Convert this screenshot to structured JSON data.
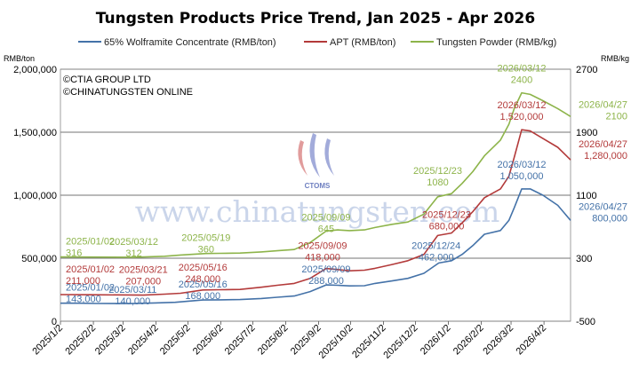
{
  "chart_data": {
    "type": "line",
    "title": "Tungsten Products Price Trend, Jan 2025 - Apr 2026",
    "y_left_unit": "RMB/ton",
    "y_right_unit": "RMB/kg",
    "y_left_range": [
      0,
      2000000
    ],
    "y_left_ticks": [
      "0",
      "500,000",
      "1,000,000",
      "1,500,000",
      "2,000,000"
    ],
    "y_right_range": [
      -500,
      2700
    ],
    "y_right_ticks": [
      "-500",
      "300",
      "1100",
      "1900",
      "2700"
    ],
    "x_range": [
      "2025-01-02",
      "2026-04-27"
    ],
    "x_ticks": [
      {
        "date": "2025-01-02",
        "label": "2025/1/2"
      },
      {
        "date": "2025-02-02",
        "label": "2025/2/2"
      },
      {
        "date": "2025-03-02",
        "label": "2025/3/2"
      },
      {
        "date": "2025-04-02",
        "label": "2025/4/2"
      },
      {
        "date": "2025-05-02",
        "label": "2025/5/2"
      },
      {
        "date": "2025-06-02",
        "label": "2025/6/2"
      },
      {
        "date": "2025-07-02",
        "label": "2025/7/2"
      },
      {
        "date": "2025-08-02",
        "label": "2025/8/2"
      },
      {
        "date": "2025-09-02",
        "label": "2025/9/2"
      },
      {
        "date": "2025-10-02",
        "label": "2025/10/2"
      },
      {
        "date": "2025-11-02",
        "label": "2025/11/2"
      },
      {
        "date": "2025-12-02",
        "label": "2025/12/2"
      },
      {
        "date": "2026-01-02",
        "label": "2026/1/2"
      },
      {
        "date": "2026-02-02",
        "label": "2026/2/2"
      },
      {
        "date": "2026-03-02",
        "label": "2026/3/2"
      },
      {
        "date": "2026-04-02",
        "label": "2026/4/2"
      }
    ],
    "legend_position": "top",
    "grid": "horizontal",
    "series": [
      {
        "name": "65% Wolframite Concentrate (RMB/ton)",
        "axis": "left",
        "color": "#4472a8",
        "points": [
          [
            "2025-01-02",
            143000
          ],
          [
            "2025-01-20",
            143000
          ],
          [
            "2025-02-05",
            141000
          ],
          [
            "2025-03-11",
            140000
          ],
          [
            "2025-04-01",
            145000
          ],
          [
            "2025-04-20",
            150000
          ],
          [
            "2025-05-16",
            168000
          ],
          [
            "2025-06-01",
            170000
          ],
          [
            "2025-06-20",
            172000
          ],
          [
            "2025-07-10",
            180000
          ],
          [
            "2025-07-25",
            190000
          ],
          [
            "2025-08-10",
            200000
          ],
          [
            "2025-08-25",
            235000
          ],
          [
            "2025-09-09",
            288000
          ],
          [
            "2025-09-20",
            285000
          ],
          [
            "2025-10-01",
            280000
          ],
          [
            "2025-10-15",
            282000
          ],
          [
            "2025-10-25",
            300000
          ],
          [
            "2025-11-10",
            320000
          ],
          [
            "2025-11-25",
            340000
          ],
          [
            "2025-12-10",
            380000
          ],
          [
            "2025-12-24",
            462000
          ],
          [
            "2026-01-05",
            480000
          ],
          [
            "2026-01-15",
            530000
          ],
          [
            "2026-01-25",
            600000
          ],
          [
            "2026-02-05",
            690000
          ],
          [
            "2026-02-20",
            720000
          ],
          [
            "2026-02-28",
            800000
          ],
          [
            "2026-03-05",
            900000
          ],
          [
            "2026-03-12",
            1050000
          ],
          [
            "2026-03-20",
            1050000
          ],
          [
            "2026-04-01",
            1000000
          ],
          [
            "2026-04-15",
            920000
          ],
          [
            "2026-04-27",
            800000
          ]
        ]
      },
      {
        "name": "APT (RMB/ton)",
        "axis": "left",
        "color": "#b33a3a",
        "points": [
          [
            "2025-01-02",
            211000
          ],
          [
            "2025-02-01",
            210000
          ],
          [
            "2025-03-21",
            207000
          ],
          [
            "2025-04-10",
            215000
          ],
          [
            "2025-04-25",
            222000
          ],
          [
            "2025-05-16",
            248000
          ],
          [
            "2025-06-01",
            250000
          ],
          [
            "2025-06-20",
            252000
          ],
          [
            "2025-07-10",
            270000
          ],
          [
            "2025-07-25",
            285000
          ],
          [
            "2025-08-10",
            300000
          ],
          [
            "2025-08-25",
            340000
          ],
          [
            "2025-09-09",
            418000
          ],
          [
            "2025-09-20",
            410000
          ],
          [
            "2025-10-01",
            400000
          ],
          [
            "2025-10-15",
            405000
          ],
          [
            "2025-10-25",
            420000
          ],
          [
            "2025-11-10",
            450000
          ],
          [
            "2025-11-25",
            480000
          ],
          [
            "2025-12-10",
            530000
          ],
          [
            "2025-12-23",
            680000
          ],
          [
            "2026-01-05",
            700000
          ],
          [
            "2026-01-15",
            780000
          ],
          [
            "2026-01-25",
            870000
          ],
          [
            "2026-02-05",
            980000
          ],
          [
            "2026-02-20",
            1050000
          ],
          [
            "2026-02-28",
            1150000
          ],
          [
            "2026-03-05",
            1300000
          ],
          [
            "2026-03-12",
            1520000
          ],
          [
            "2026-03-20",
            1510000
          ],
          [
            "2026-04-01",
            1450000
          ],
          [
            "2026-04-15",
            1380000
          ],
          [
            "2026-04-27",
            1280000
          ]
        ]
      },
      {
        "name": "Tungsten Powder (RMB/kg)",
        "axis": "right",
        "color": "#8db44a",
        "points": [
          [
            "2025-01-02",
            316
          ],
          [
            "2025-02-01",
            315
          ],
          [
            "2025-03-12",
            312
          ],
          [
            "2025-04-10",
            325
          ],
          [
            "2025-04-25",
            340
          ],
          [
            "2025-05-19",
            360
          ],
          [
            "2025-06-01",
            362
          ],
          [
            "2025-06-20",
            365
          ],
          [
            "2025-07-10",
            380
          ],
          [
            "2025-07-25",
            395
          ],
          [
            "2025-08-10",
            410
          ],
          [
            "2025-08-25",
            500
          ],
          [
            "2025-09-09",
            645
          ],
          [
            "2025-09-20",
            660
          ],
          [
            "2025-10-01",
            650
          ],
          [
            "2025-10-15",
            660
          ],
          [
            "2025-10-25",
            690
          ],
          [
            "2025-11-10",
            730
          ],
          [
            "2025-11-25",
            760
          ],
          [
            "2025-12-10",
            860
          ],
          [
            "2025-12-23",
            1080
          ],
          [
            "2026-01-05",
            1120
          ],
          [
            "2026-01-15",
            1250
          ],
          [
            "2026-01-25",
            1400
          ],
          [
            "2026-02-05",
            1600
          ],
          [
            "2026-02-20",
            1800
          ],
          [
            "2026-02-28",
            2000
          ],
          [
            "2026-03-05",
            2200
          ],
          [
            "2026-03-12",
            2400
          ],
          [
            "2026-03-20",
            2380
          ],
          [
            "2026-04-01",
            2300
          ],
          [
            "2026-04-15",
            2200
          ],
          [
            "2026-04-27",
            2100
          ]
        ]
      }
    ],
    "annotations": [
      {
        "series": 0,
        "date": "2025-01-02",
        "value": 143000,
        "date_label": "2025/01/02",
        "value_label": "143,000"
      },
      {
        "series": 0,
        "date": "2025-03-11",
        "value": 140000,
        "date_label": "2025/03/11",
        "value_label": "140,000"
      },
      {
        "series": 0,
        "date": "2025-05-16",
        "value": 168000,
        "date_label": "2025/05/16",
        "value_label": "168,000"
      },
      {
        "series": 0,
        "date": "2025-09-09",
        "value": 288000,
        "date_label": "2025/09/09",
        "value_label": "288,000"
      },
      {
        "series": 0,
        "date": "2025-12-24",
        "value": 462000,
        "date_label": "2025/12/24",
        "value_label": "462,000"
      },
      {
        "series": 0,
        "date": "2026-03-12",
        "value": 1050000,
        "date_label": "2026/03/12",
        "value_label": "1,050,000"
      },
      {
        "series": 0,
        "date": "2026-04-27",
        "value": 800000,
        "date_label": "2026/04/27",
        "value_label": "800,000"
      },
      {
        "series": 1,
        "date": "2025-01-02",
        "value": 211000,
        "date_label": "2025/01/02",
        "value_label": "211,000"
      },
      {
        "series": 1,
        "date": "2025-03-21",
        "value": 207000,
        "date_label": "2025/03/21",
        "value_label": "207,000"
      },
      {
        "series": 1,
        "date": "2025-05-16",
        "value": 248000,
        "date_label": "2025/05/16",
        "value_label": "248,000"
      },
      {
        "series": 1,
        "date": "2025-09-09",
        "value": 418000,
        "date_label": "2025/09/09",
        "value_label": "418,000"
      },
      {
        "series": 1,
        "date": "2025-12-23",
        "value": 680000,
        "date_label": "2025/12/23",
        "value_label": "680,000"
      },
      {
        "series": 1,
        "date": "2026-03-12",
        "value": 1520000,
        "date_label": "2026/03/12",
        "value_label": "1,520,000"
      },
      {
        "series": 1,
        "date": "2026-04-27",
        "value": 1280000,
        "date_label": "2026/04/27",
        "value_label": "1,280,000"
      },
      {
        "series": 2,
        "date": "2025-01-02",
        "value": 316,
        "date_label": "2025/01/02",
        "value_label": "316"
      },
      {
        "series": 2,
        "date": "2025-03-12",
        "value": 312,
        "date_label": "2025/03/12",
        "value_label": "312"
      },
      {
        "series": 2,
        "date": "2025-05-19",
        "value": 360,
        "date_label": "2025/05/19",
        "value_label": "360"
      },
      {
        "series": 2,
        "date": "2025-09-09",
        "value": 645,
        "date_label": "2025/09/09",
        "value_label": "645"
      },
      {
        "series": 2,
        "date": "2025-12-23",
        "value": 1080,
        "date_label": "2025/12/23",
        "value_label": "1080"
      },
      {
        "series": 2,
        "date": "2026-03-12",
        "value": 2400,
        "date_label": "2026/03/12",
        "value_label": "2400"
      },
      {
        "series": 2,
        "date": "2026-04-27",
        "value": 2100,
        "date_label": "2026/04/27",
        "value_label": "2100"
      }
    ]
  },
  "copyright": [
    "©CTIA GROUP LTD",
    "©CHINATUNGSTEN ONLINE"
  ],
  "watermark": {
    "text": "www.chinatungsten.com",
    "logo_text": "CTOMS"
  }
}
